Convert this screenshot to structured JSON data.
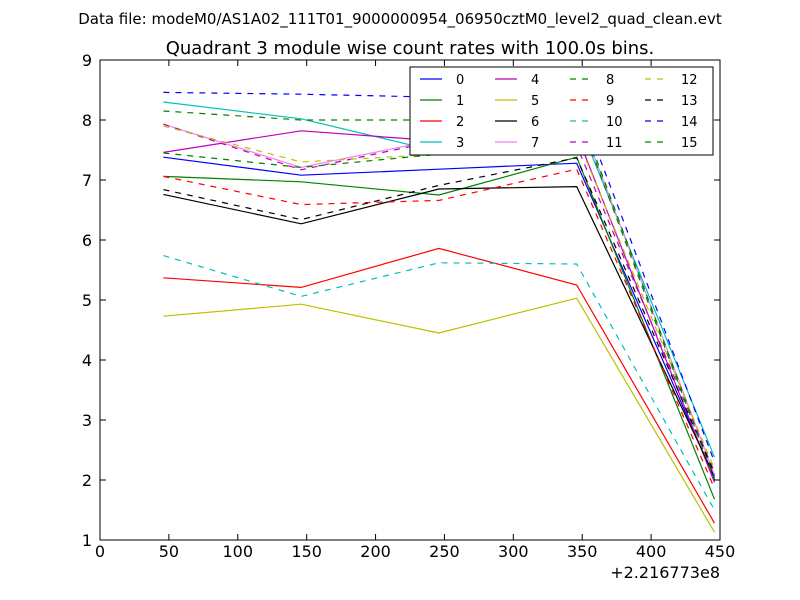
{
  "header": {
    "data_file": "Data file: modeM0/AS1A02_111T01_9000000954_06950cztM0_level2_quad_clean.evt"
  },
  "chart_data": {
    "type": "line",
    "title": "Quadrant 3 module wise count rates with 100.0s bins.",
    "xlabel": "",
    "ylabel": "",
    "x_offset_label": "+2.216773e8",
    "xlim": [
      0,
      450
    ],
    "ylim": [
      1,
      9
    ],
    "xticks": [
      0,
      50,
      100,
      150,
      200,
      250,
      300,
      350,
      400,
      450
    ],
    "yticks": [
      1,
      2,
      3,
      4,
      5,
      6,
      7,
      8,
      9
    ],
    "grid": false,
    "legend_position": "top-right",
    "legend_columns": 4,
    "x": [
      46,
      146,
      246,
      346,
      446
    ],
    "series": [
      {
        "name": "0",
        "color": "#0000ff",
        "dash": "solid",
        "values": [
          7.38,
          7.08,
          7.18,
          7.28,
          2.02
        ]
      },
      {
        "name": "1",
        "color": "#008000",
        "dash": "solid",
        "values": [
          7.06,
          6.97,
          6.75,
          7.38,
          1.68
        ]
      },
      {
        "name": "2",
        "color": "#ff0000",
        "dash": "solid",
        "values": [
          5.37,
          5.21,
          5.86,
          5.25,
          1.28
        ]
      },
      {
        "name": "3",
        "color": "#00bfbf",
        "dash": "solid",
        "values": [
          8.3,
          8.02,
          7.47,
          8.03,
          2.38
        ]
      },
      {
        "name": "4",
        "color": "#bf00bf",
        "dash": "solid",
        "values": [
          7.46,
          7.82,
          7.65,
          7.76,
          1.96
        ]
      },
      {
        "name": "5",
        "color": "#bfbf00",
        "dash": "solid",
        "values": [
          4.73,
          4.93,
          4.45,
          5.03,
          1.13
        ]
      },
      {
        "name": "6",
        "color": "#000000",
        "dash": "solid",
        "values": [
          6.76,
          6.27,
          6.85,
          6.89,
          2.06
        ]
      },
      {
        "name": "7",
        "color": "#ee82ee",
        "dash": "solid",
        "values": [
          7.93,
          7.21,
          7.68,
          8.17,
          2.08
        ]
      },
      {
        "name": "8",
        "color": "#008000",
        "dash": "dashed",
        "values": [
          7.45,
          7.21,
          7.43,
          8.23,
          2.03
        ]
      },
      {
        "name": "9",
        "color": "#ff0000",
        "dash": "dashed",
        "values": [
          7.06,
          6.59,
          6.66,
          7.18,
          1.86
        ]
      },
      {
        "name": "10",
        "color": "#00bfbf",
        "dash": "dashed",
        "values": [
          5.74,
          5.06,
          5.62,
          5.6,
          1.5
        ]
      },
      {
        "name": "11",
        "color": "#bf00bf",
        "dash": "dashed",
        "values": [
          7.93,
          7.17,
          7.66,
          7.57,
          2.13
        ]
      },
      {
        "name": "12",
        "color": "#bfbf00",
        "dash": "dashed",
        "values": [
          7.9,
          7.3,
          7.43,
          7.71,
          2.18
        ]
      },
      {
        "name": "13",
        "color": "#000000",
        "dash": "dashed",
        "values": [
          6.84,
          6.34,
          6.91,
          7.37,
          2.1
        ]
      },
      {
        "name": "14",
        "color": "#0000ff",
        "dash": "dashed",
        "values": [
          8.46,
          8.43,
          8.38,
          8.38,
          2.3
        ]
      },
      {
        "name": "15",
        "color": "#008000",
        "dash": "dashed",
        "values": [
          8.15,
          8.0,
          8.0,
          8.14,
          2.0
        ]
      }
    ]
  }
}
